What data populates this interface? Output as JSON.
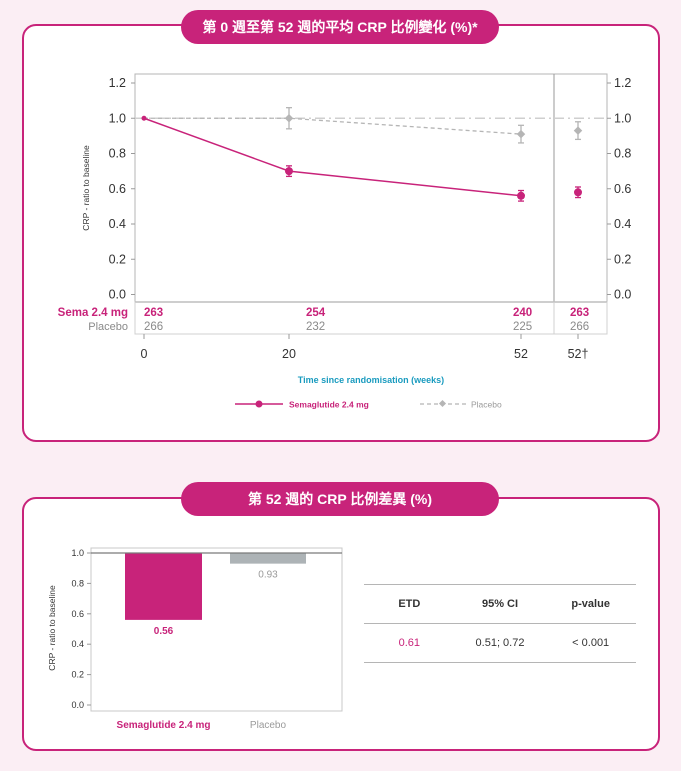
{
  "colors": {
    "accent": "#c8237a",
    "sema": "#c8237a",
    "placebo": "#b5b5b5",
    "placebo_bar": "#adb3b6",
    "axis_title": "#1a9bbf"
  },
  "panel1": {
    "title": "第 0 週至第 52 週的平均 CRP 比例變化 (%)*",
    "row_labels": {
      "sema": "Sema 2.4 mg",
      "placebo": "Placebo"
    },
    "at_risk": {
      "sema": [
        "263",
        "254",
        "240",
        "263"
      ],
      "placebo": [
        "266",
        "232",
        "225",
        "266"
      ]
    }
  },
  "panel2": {
    "title": "第 52 週的 CRP 比例差異 (%)",
    "table": {
      "headers": [
        "ETD",
        "95% CI",
        "p-value"
      ],
      "values": [
        "0.61",
        "0.51; 0.72",
        "< 0.001"
      ]
    }
  },
  "chart_data": [
    {
      "type": "line",
      "ylabel": "CRP - ratio to baseline",
      "xlabel": "Time since randomisation (weeks)",
      "x_ticks": [
        "0",
        "20",
        "52",
        "52†"
      ],
      "x_values": [
        0,
        20,
        52
      ],
      "y_ticks": [
        "0.0",
        "0.2",
        "0.4",
        "0.6",
        "0.8",
        "1.0",
        "1.2"
      ],
      "ylim": [
        0,
        1.2
      ],
      "reference_line": 1.0,
      "legend_position": "bottom",
      "series": [
        {
          "name": "Semaglutide 2.4 mg",
          "values": [
            1.0,
            0.7,
            0.56
          ],
          "err": [
            0,
            0.03,
            0.03
          ],
          "extra_point": 0.58,
          "extra_err": 0.03
        },
        {
          "name": "Placebo",
          "values": [
            1.0,
            1.0,
            0.91
          ],
          "err": [
            0,
            0.06,
            0.05
          ],
          "extra_point": 0.93,
          "extra_err": 0.05
        }
      ]
    },
    {
      "type": "bar",
      "ylabel": "CRP - ratio to baseline",
      "categories": [
        "Semaglutide 2.4 mg",
        "Placebo"
      ],
      "values": [
        0.56,
        0.93
      ],
      "value_labels": [
        "0.56",
        "0.93"
      ],
      "y_ticks": [
        "0.0",
        "0.2",
        "0.4",
        "0.6",
        "0.8",
        "1.0"
      ],
      "ylim": [
        0,
        1.0
      ],
      "baseline": 1.0
    }
  ]
}
